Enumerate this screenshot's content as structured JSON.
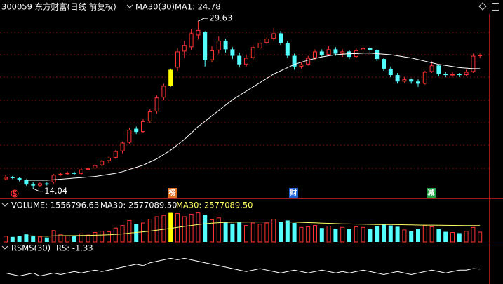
{
  "header": {
    "symbol": "300059 东方财富(日线 前复权)",
    "ma_name": "MA30(30)",
    "ma1": "MA1: 24.78"
  },
  "volume_header": {
    "name": "VOLUME: 1556796.63",
    "ma_white": "MA30: 2577089.50",
    "ma_yellow": "MA30: 2577089.50"
  },
  "rs_header": {
    "name": "RSMS(30)",
    "value": "RS: -1.33"
  },
  "event_labels": [
    "$",
    "榜",
    "财",
    "减"
  ],
  "chart_data": [
    {
      "type": "candlestick",
      "up_color": "#ff3232",
      "down_color": "#54ffff",
      "highlight_color": "#ffff00",
      "highlight": 24,
      "ylim": [
        13.1,
        31.6
      ],
      "candles": [
        [
          14.9,
          15.3,
          14.8,
          15.1
        ],
        [
          15.1,
          15.2,
          14.9,
          15.0
        ],
        [
          15.0,
          15.1,
          14.7,
          14.8
        ],
        [
          14.8,
          14.9,
          14.3,
          14.4
        ],
        [
          14.4,
          14.6,
          14.04,
          14.3
        ],
        [
          14.3,
          14.6,
          14.2,
          14.5
        ],
        [
          14.5,
          14.6,
          14.3,
          14.4
        ],
        [
          14.6,
          15.4,
          14.5,
          15.3
        ],
        [
          15.3,
          15.5,
          15.2,
          15.4
        ],
        [
          15.4,
          15.6,
          15.3,
          15.5
        ],
        [
          15.5,
          15.6,
          15.3,
          15.4
        ],
        [
          15.4,
          15.9,
          15.3,
          15.8
        ],
        [
          15.8,
          16.0,
          15.7,
          15.9
        ],
        [
          15.9,
          16.3,
          15.8,
          16.2
        ],
        [
          16.2,
          16.7,
          16.1,
          16.6
        ],
        [
          16.6,
          17.0,
          16.4,
          16.9
        ],
        [
          16.9,
          17.6,
          16.8,
          17.5
        ],
        [
          17.5,
          18.4,
          17.3,
          18.3
        ],
        [
          18.3,
          19.7,
          18.2,
          19.5
        ],
        [
          19.6,
          19.8,
          19.1,
          19.3
        ],
        [
          19.3,
          20.5,
          19.2,
          20.3
        ],
        [
          20.3,
          21.4,
          20.1,
          21.2
        ],
        [
          21.2,
          22.7,
          21.0,
          22.5
        ],
        [
          22.5,
          23.8,
          22.3,
          23.6
        ],
        [
          23.6,
          25.2,
          23.5,
          25.1
        ],
        [
          25.3,
          27.1,
          25.0,
          26.8
        ],
        [
          26.8,
          27.8,
          26.2,
          27.4
        ],
        [
          27.2,
          28.9,
          26.9,
          28.5
        ],
        [
          28.3,
          29.63,
          27.9,
          28.8
        ],
        [
          28.6,
          28.7,
          25.4,
          26.0
        ],
        [
          26.0,
          27.3,
          25.8,
          26.9
        ],
        [
          26.9,
          28.2,
          26.6,
          27.8
        ],
        [
          27.8,
          28.0,
          26.7,
          27.0
        ],
        [
          27.0,
          27.2,
          26.1,
          26.4
        ],
        [
          26.4,
          26.7,
          25.3,
          25.6
        ],
        [
          25.6,
          26.5,
          25.4,
          26.2
        ],
        [
          26.2,
          27.4,
          26.0,
          27.2
        ],
        [
          27.1,
          27.9,
          26.9,
          27.6
        ],
        [
          27.6,
          28.3,
          27.4,
          28.0
        ],
        [
          28.0,
          29.0,
          27.8,
          28.5
        ],
        [
          28.5,
          28.7,
          27.4,
          27.6
        ],
        [
          27.6,
          27.8,
          26.2,
          26.4
        ],
        [
          26.4,
          26.6,
          25.1,
          25.4
        ],
        [
          25.4,
          25.8,
          25.2,
          25.6
        ],
        [
          25.6,
          26.4,
          25.5,
          26.2
        ],
        [
          26.2,
          27.0,
          26.0,
          26.8
        ],
        [
          26.8,
          27.0,
          26.3,
          26.5
        ],
        [
          26.5,
          27.3,
          26.4,
          27.0
        ],
        [
          27.0,
          27.2,
          26.4,
          26.6
        ],
        [
          26.6,
          27.0,
          26.3,
          26.8
        ],
        [
          26.8,
          26.9,
          26.1,
          26.3
        ],
        [
          26.3,
          27.1,
          26.2,
          26.9
        ],
        [
          26.9,
          27.4,
          26.7,
          27.1
        ],
        [
          27.1,
          27.3,
          26.7,
          26.9
        ],
        [
          26.9,
          27.0,
          25.9,
          26.1
        ],
        [
          26.1,
          26.2,
          25.0,
          25.2
        ],
        [
          25.2,
          25.4,
          24.4,
          24.6
        ],
        [
          24.6,
          24.8,
          23.8,
          24.0
        ],
        [
          24.0,
          24.4,
          23.9,
          24.2
        ],
        [
          24.2,
          24.3,
          23.8,
          24.0
        ],
        [
          24.0,
          24.2,
          23.5,
          23.8
        ],
        [
          23.8,
          25.0,
          23.7,
          24.9
        ],
        [
          24.9,
          25.9,
          24.8,
          25.5
        ],
        [
          25.5,
          25.6,
          24.5,
          24.7
        ],
        [
          24.7,
          24.9,
          24.4,
          24.6
        ],
        [
          24.6,
          24.9,
          24.5,
          24.7
        ],
        [
          24.7,
          24.8,
          24.4,
          24.6
        ],
        [
          24.6,
          25.1,
          24.5,
          24.9
        ],
        [
          24.9,
          26.6,
          24.8,
          26.4
        ],
        [
          26.4,
          26.6,
          26.2,
          26.5
        ]
      ],
      "series": [
        {
          "name": "MA30",
          "color": "#ffffff",
          "values": [
            null,
            null,
            null,
            14.8,
            14.8,
            14.8,
            14.8,
            14.85,
            14.9,
            14.95,
            15.0,
            15.05,
            15.1,
            15.15,
            15.25,
            15.35,
            15.45,
            15.6,
            15.8,
            16.0,
            16.2,
            16.5,
            16.8,
            17.2,
            17.6,
            18.1,
            18.6,
            19.2,
            19.8,
            20.3,
            20.8,
            21.3,
            21.8,
            22.3,
            22.7,
            23.1,
            23.5,
            23.9,
            24.3,
            24.7,
            25.0,
            25.3,
            25.6,
            25.8,
            26.0,
            26.15,
            26.3,
            26.4,
            26.5,
            26.55,
            26.6,
            26.6,
            26.65,
            26.65,
            26.6,
            26.55,
            26.5,
            26.4,
            26.3,
            26.2,
            26.05,
            25.9,
            25.75,
            25.6,
            25.5,
            25.4,
            25.3,
            25.25,
            25.2,
            25.2
          ]
        }
      ]
    },
    {
      "type": "volume",
      "ylim": [
        0,
        5000000
      ],
      "values": [
        900000,
        800000,
        900000,
        1200000,
        1000000,
        800000,
        700000,
        1800000,
        1200000,
        1000000,
        900000,
        1300000,
        1100000,
        1500000,
        1700000,
        1600000,
        2200000,
        2600000,
        3400000,
        2800000,
        3000000,
        3600000,
        4000000,
        4200000,
        4600000,
        4500000,
        4000000,
        4400000,
        4600000,
        4300000,
        3500000,
        3800000,
        3200000,
        2900000,
        3100000,
        2600000,
        3000000,
        2800000,
        3000000,
        3600000,
        3200000,
        3400000,
        3000000,
        2300000,
        2400000,
        2600000,
        2200000,
        2500000,
        2100000,
        2300000,
        2000000,
        2400000,
        2300000,
        2000000,
        2500000,
        2800000,
        2600000,
        2400000,
        1900000,
        1700000,
        2000000,
        2600000,
        2400000,
        2000000,
        1600000,
        1500000,
        1400000,
        1700000,
        2300000,
        1556796.63
      ],
      "series": [
        {
          "name": "MA30",
          "color": "#ffff66",
          "values": [
            null,
            null,
            null,
            950000,
            950000,
            930000,
            900000,
            980000,
            1000000,
            1000000,
            1000000,
            1030000,
            1040000,
            1070000,
            1100000,
            1140000,
            1200000,
            1280000,
            1400000,
            1500000,
            1600000,
            1720000,
            1860000,
            2000000,
            2150000,
            2300000,
            2450000,
            2600000,
            2750000,
            2880000,
            2980000,
            3050000,
            3100000,
            3120000,
            3140000,
            3140000,
            3150000,
            3150000,
            3160000,
            3170000,
            3170000,
            3160000,
            3140000,
            3100000,
            3060000,
            3020000,
            2980000,
            2940000,
            2900000,
            2870000,
            2840000,
            2820000,
            2800000,
            2780000,
            2760000,
            2750000,
            2740000,
            2730000,
            2710000,
            2690000,
            2670000,
            2660000,
            2650000,
            2640000,
            2620000,
            2610000,
            2600000,
            2590000,
            2580000,
            2577089.5
          ]
        }
      ]
    },
    {
      "type": "line",
      "ylim": [
        -10,
        10
      ],
      "series": [
        {
          "name": "RS",
          "color": "#ffffff",
          "values": [
            -4,
            -5,
            -6,
            -5,
            -4,
            -6,
            -5,
            -4,
            -5,
            -4,
            -3,
            -4,
            -3,
            -2,
            -3,
            -2,
            -1,
            0,
            1,
            2,
            1,
            3,
            4,
            5,
            6,
            5,
            6,
            5,
            4,
            3,
            2,
            1,
            0,
            -1,
            -2,
            -3,
            -2,
            -1,
            -2,
            -3,
            -4,
            -3,
            -2,
            -3,
            -4,
            -3,
            -2,
            -3,
            -4,
            -3,
            -4,
            -3,
            -2,
            -3,
            -4,
            -5,
            -4,
            -3,
            -4,
            -5,
            -4,
            -3,
            -2,
            -3,
            -4,
            -3,
            -2,
            -2,
            -1,
            -1.33
          ]
        }
      ]
    }
  ]
}
